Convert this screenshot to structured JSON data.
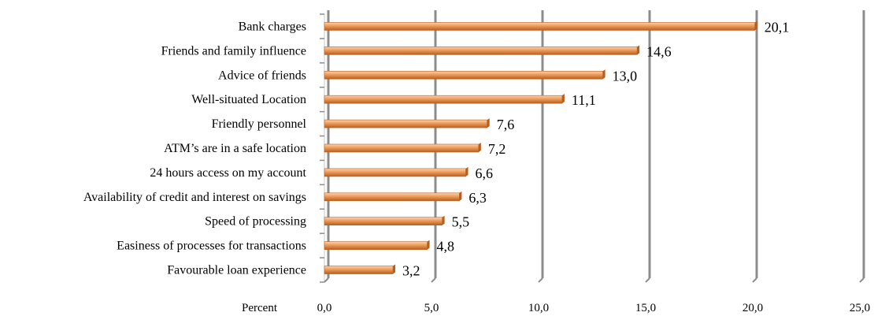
{
  "chart_data": {
    "type": "bar",
    "orientation": "horizontal",
    "categories": [
      "Bank charges",
      "Friends and family influence",
      "Advice of friends",
      "Well-situated Location",
      "Friendly personnel",
      "ATM’s are in a safe location",
      "24 hours access on my account",
      "Availability of credit and interest on savings",
      "Speed of processing",
      "Easiness of processes for transactions",
      "Favourable loan experience"
    ],
    "values": [
      20.1,
      14.6,
      13.0,
      11.1,
      7.6,
      7.2,
      6.6,
      6.3,
      5.5,
      4.8,
      3.2
    ],
    "data_labels": [
      "20,1",
      "14,6",
      "13,0",
      "11,1",
      "7,6",
      "7,2",
      "6,6",
      "6,3",
      "5,5",
      "4,8",
      "3,2"
    ],
    "xlabel": "Percent",
    "xlim": [
      0,
      25
    ],
    "xticks": [
      0,
      5,
      10,
      15,
      20,
      25
    ],
    "xtick_labels": [
      "0,0",
      "5,0",
      "10,0",
      "15,0",
      "20,0",
      "25,0"
    ],
    "grid": "vertical",
    "legend": "none",
    "colors": {
      "bar": "#f0a060",
      "bar_shade": "#b85f1e",
      "grid": "#8c8c8c",
      "grid_shadow": "#c8c8c8"
    }
  }
}
